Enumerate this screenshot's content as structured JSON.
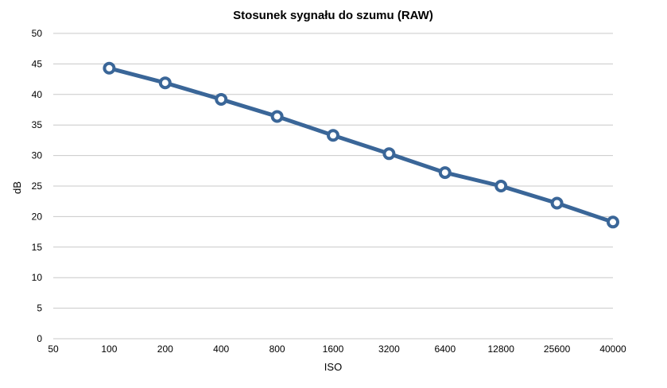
{
  "chart_data": {
    "type": "line",
    "title": "Stosunek sygnału do szumu (RAW)",
    "xlabel": "ISO",
    "ylabel": "dB",
    "categories": [
      "50",
      "100",
      "200",
      "400",
      "800",
      "1600",
      "3200",
      "6400",
      "12800",
      "25600",
      "40000"
    ],
    "x": [
      "100",
      "200",
      "400",
      "800",
      "1600",
      "3200",
      "6400",
      "12800",
      "25600",
      "40000"
    ],
    "series": [
      {
        "values": [
          44.3,
          41.9,
          39.2,
          36.4,
          33.3,
          30.3,
          27.2,
          25.0,
          22.2,
          19.1
        ],
        "color": "#3a6698"
      }
    ],
    "ylim": [
      0,
      50
    ],
    "yticks": [
      0,
      5,
      10,
      15,
      20,
      25,
      30,
      35,
      40,
      45,
      50
    ],
    "grid": true,
    "legend": "none",
    "colors": {
      "line": "#3a6698",
      "marker_fill": "#ffffff",
      "grid": "#c8c8c8"
    }
  }
}
